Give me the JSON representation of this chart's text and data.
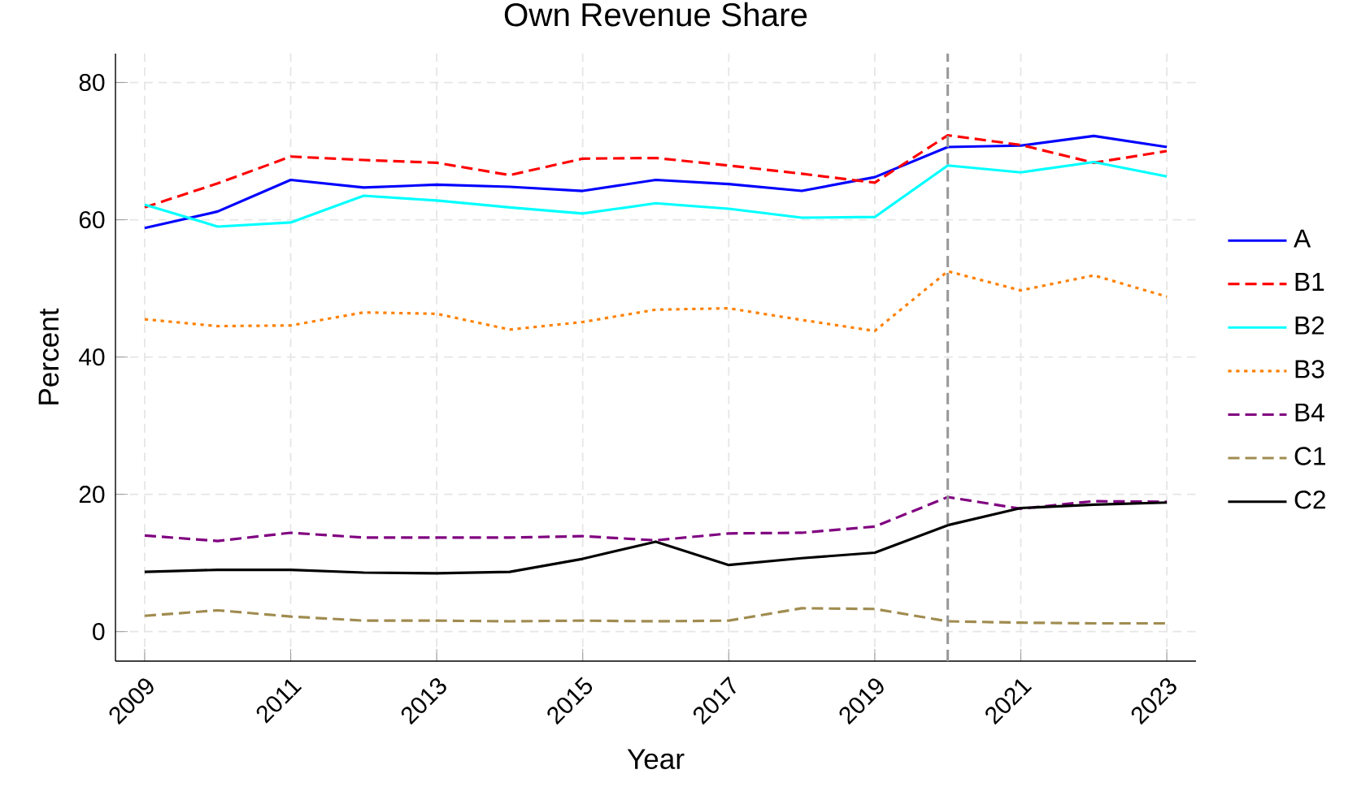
{
  "chart_data": {
    "type": "line",
    "title": "Own Revenue Share",
    "xlabel": "Year",
    "ylabel": "Percent",
    "x": [
      2009,
      2010,
      2011,
      2012,
      2013,
      2014,
      2015,
      2016,
      2017,
      2018,
      2019,
      2020,
      2021,
      2022,
      2023
    ],
    "series": [
      {
        "name": "A",
        "color": "#0000ff",
        "line_style": "solid",
        "values": [
          58.8,
          61.2,
          65.8,
          64.7,
          65.1,
          64.8,
          64.2,
          65.8,
          65.2,
          64.2,
          66.2,
          70.6,
          70.8,
          72.2,
          70.6
        ]
      },
      {
        "name": "B1",
        "color": "#ff0000",
        "line_style": "dashed",
        "values": [
          61.8,
          65.3,
          69.2,
          68.7,
          68.3,
          66.5,
          68.9,
          69.0,
          67.9,
          66.7,
          65.4,
          72.3,
          70.9,
          68.3,
          70.0
        ]
      },
      {
        "name": "B2",
        "color": "#00ffff",
        "line_style": "solid",
        "values": [
          62.2,
          59.0,
          59.6,
          63.5,
          62.8,
          61.8,
          60.9,
          62.4,
          61.6,
          60.3,
          60.4,
          67.9,
          66.9,
          68.4,
          66.3
        ]
      },
      {
        "name": "B3",
        "color": "#ff8000",
        "line_style": "dotted",
        "values": [
          45.5,
          44.5,
          44.6,
          46.5,
          46.3,
          44.0,
          45.1,
          46.9,
          47.1,
          45.4,
          43.8,
          52.5,
          49.7,
          51.9,
          48.8
        ]
      },
      {
        "name": "B4",
        "color": "#800080",
        "line_style": "dashed",
        "values": [
          14.0,
          13.2,
          14.4,
          13.7,
          13.7,
          13.7,
          13.9,
          13.3,
          14.3,
          14.4,
          15.3,
          19.6,
          17.9,
          19.0,
          18.9
        ]
      },
      {
        "name": "C1",
        "color": "#a08c50",
        "line_style": "dashed",
        "values": [
          2.3,
          3.1,
          2.2,
          1.6,
          1.6,
          1.5,
          1.6,
          1.5,
          1.6,
          3.4,
          3.3,
          1.5,
          1.3,
          1.2,
          1.2
        ]
      },
      {
        "name": "C2",
        "color": "#000000",
        "line_style": "solid",
        "values": [
          8.7,
          9.0,
          9.0,
          8.6,
          8.5,
          8.7,
          10.6,
          13.1,
          9.7,
          10.7,
          11.5,
          15.5,
          18.0,
          18.5,
          18.8
        ]
      }
    ],
    "xlim": [
      2008.6,
      2023.4
    ],
    "xticks": [
      2009,
      2011,
      2013,
      2015,
      2017,
      2019,
      2021,
      2023
    ],
    "ylim": [
      -4.3,
      84.2
    ],
    "yticks": [
      0,
      20,
      40,
      60,
      80
    ],
    "ref_lines": [
      {
        "axis": "x",
        "value": 2020,
        "color": "#999999",
        "line_style": "dashed"
      }
    ],
    "grid": true,
    "legend": "right"
  }
}
